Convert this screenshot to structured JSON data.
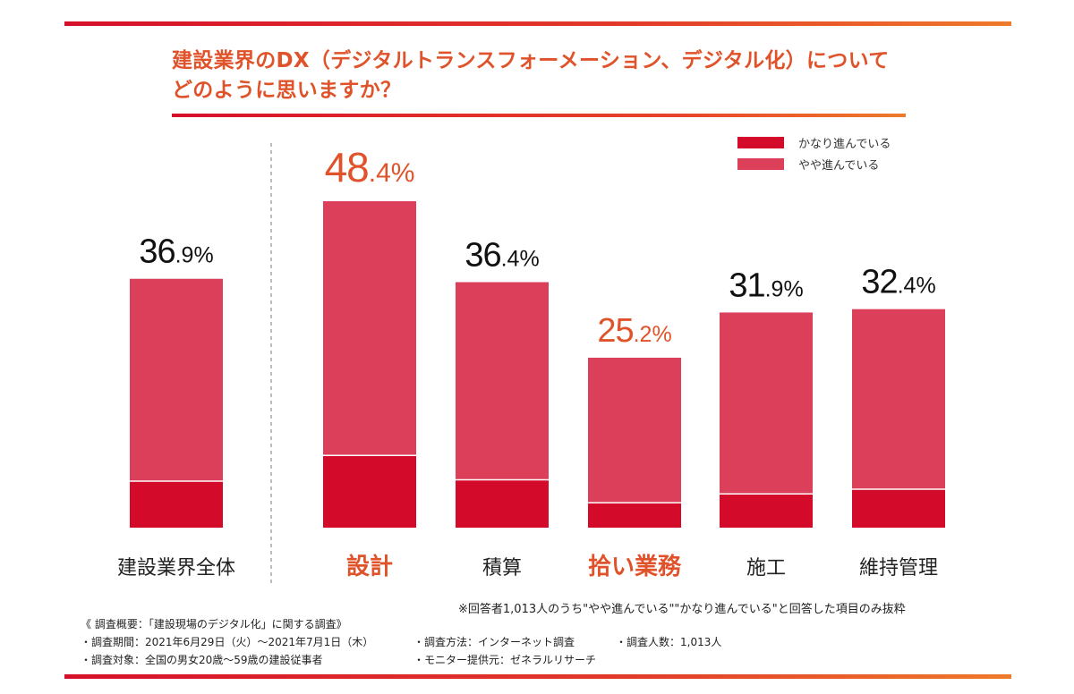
{
  "title_line1": "建設業界のDX（デジタルトランスフォーメーション、デジタル化）について",
  "title_line2": "どのように思いますか？",
  "legend": [
    {
      "label": "かなり進んでいる",
      "color": "#d30a2a"
    },
    {
      "label": "やや進んでいる",
      "color": "#db3f5a"
    }
  ],
  "note": "※回答者1,013人のうち\"やや進んでいる\"\"かなり進んでいる\"と回答した項目のみ抜粋",
  "survey": {
    "heading": "《 調査概要：「建設現場のデジタル化」に関する調査》",
    "period": "・調査期間：2021年6月29日（火）～2021年7月1日（木）",
    "method": "・調査方法：インターネット調査",
    "count": "・調査人数：1,013人",
    "target": "・調査対象：全国の男女20歳～59歳の建設従事者",
    "provider": "・モニター提供元：ゼネラルリサーチ"
  },
  "chart_data": {
    "type": "bar",
    "stacked": true,
    "categories": [
      "建設業界全体",
      "設計",
      "積算",
      "拾い業務",
      "施工",
      "維持管理"
    ],
    "series": [
      {
        "name": "かなり進んでいる",
        "color": "#d30a2a",
        "values": [
          6.9,
          10.7,
          7.1,
          3.7,
          5.0,
          5.7
        ]
      },
      {
        "name": "やや進んでいる",
        "color": "#db3f5a",
        "values": [
          30.0,
          37.7,
          29.3,
          21.5,
          26.9,
          26.7
        ]
      }
    ],
    "totals": [
      "36.9",
      "48.4",
      "36.4",
      "25.2",
      "31.9",
      "32.4"
    ],
    "unit": "%",
    "highlight": [
      false,
      true,
      false,
      true,
      false,
      false
    ],
    "highlight_color": "#e0532a",
    "ylim": [
      0,
      48.4
    ],
    "legend_position": "top-right"
  }
}
